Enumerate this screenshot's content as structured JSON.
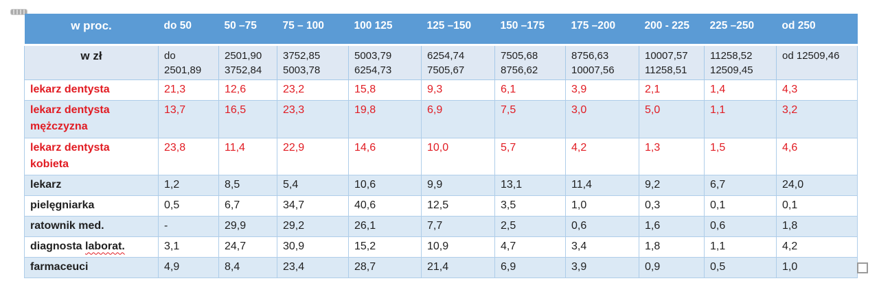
{
  "colors": {
    "header_bg": "#5b9bd5",
    "band_bg": "#dbe9f5",
    "border": "#a6c9e8",
    "red_text": "#e11b22",
    "black_text": "#1f1f1f",
    "header_text": "#ffffff",
    "handle_gray": "#a6a6a6"
  },
  "table": {
    "header": {
      "label": "w proc.",
      "cols": [
        "do 50",
        "50 –75",
        "75 – 100",
        "100 125",
        "125 –150",
        "150 –175",
        "175 –200",
        "200 - 225",
        "225 –250",
        "od 250"
      ]
    },
    "unit_row": {
      "label": "w zł",
      "ranges": [
        [
          "do",
          "2501,89"
        ],
        [
          "2501,90",
          "3752,84"
        ],
        [
          "3752,85",
          "5003,78"
        ],
        [
          "5003,79",
          "6254,73"
        ],
        [
          "6254,74",
          "7505,67"
        ],
        [
          "7505,68",
          "8756,62"
        ],
        [
          "8756,63",
          "10007,56"
        ],
        [
          "10007,57",
          "11258,51"
        ],
        [
          "11258,52",
          "12509,45"
        ],
        [
          "od 12509,46"
        ]
      ]
    },
    "rows": [
      {
        "style": "red",
        "band": false,
        "lines": [
          "lekarz dentysta"
        ],
        "values": [
          "21,3",
          "12,6",
          "23,2",
          "15,8",
          "9,3",
          "6,1",
          "3,9",
          "2,1",
          "1,4",
          "4,3"
        ]
      },
      {
        "style": "red",
        "band": true,
        "lines": [
          "lekarz dentysta",
          "mężczyzna"
        ],
        "values": [
          "13,7",
          "16,5",
          "23,3",
          "19,8",
          "6,9",
          "7,5",
          "3,0",
          "5,0",
          "1,1",
          "3,2"
        ]
      },
      {
        "style": "red",
        "band": false,
        "lines": [
          "lekarz dentysta",
          "kobieta"
        ],
        "values": [
          "23,8",
          "11,4",
          "22,9",
          "14,6",
          "10,0",
          "5,7",
          "4,2",
          "1,3",
          "1,5",
          "4,6"
        ]
      },
      {
        "style": "black",
        "band": true,
        "lines": [
          "lekarz"
        ],
        "values": [
          "1,2",
          "8,5",
          "5,4",
          "10,6",
          "9,9",
          "13,1",
          "11,4",
          "9,2",
          "6,7",
          "24,0"
        ]
      },
      {
        "style": "black",
        "band": false,
        "lines": [
          "pielęgniarka"
        ],
        "values": [
          "0,5",
          "6,7",
          "34,7",
          "40,6",
          "12,5",
          "3,5",
          "1,0",
          "0,3",
          "0,1",
          "0,1"
        ]
      },
      {
        "style": "black",
        "band": true,
        "lines": [
          "ratownik med."
        ],
        "values": [
          "-",
          "29,9",
          "29,2",
          "26,1",
          "7,7",
          "2,5",
          "0,6",
          "1,6",
          "0,6",
          "1,8"
        ]
      },
      {
        "style": "black",
        "band": false,
        "lines": [
          "diagnosta laborat."
        ],
        "label_prefix": "diagnosta ",
        "label_squiggle": "laborat.",
        "values": [
          "3,1",
          "24,7",
          "30,9",
          "15,2",
          "10,9",
          "4,7",
          "3,4",
          "1,8",
          "1,1",
          "4,2"
        ]
      },
      {
        "style": "black",
        "band": true,
        "lines": [
          "farmaceuci"
        ],
        "values": [
          "4,9",
          "8,4",
          "23,4",
          "28,7",
          "21,4",
          "6,9",
          "3,9",
          "0,9",
          "0,5",
          "1,0"
        ]
      }
    ]
  }
}
